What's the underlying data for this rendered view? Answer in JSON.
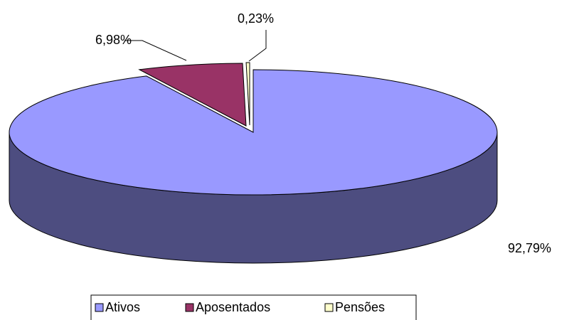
{
  "chart_data": {
    "type": "pie",
    "categories": [
      "Ativos",
      "Aposentados",
      "Pensões"
    ],
    "values": [
      92.79,
      6.98,
      0.23
    ],
    "value_labels": [
      "92,79%",
      "6,98%",
      "0,23%"
    ],
    "colors": [
      "#9999ff",
      "#993366",
      "#ffffcc"
    ],
    "legend": "bottom"
  }
}
